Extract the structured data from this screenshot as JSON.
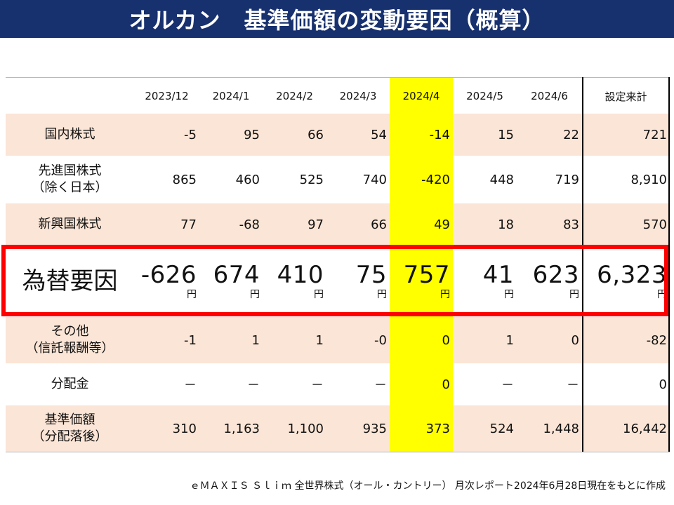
{
  "title": "オルカン　基準価額の変動要因（概算）",
  "table": {
    "header": [
      "",
      "2023/12",
      "2024/1",
      "2024/2",
      "2024/3",
      "2024/4",
      "2024/5",
      "2024/6",
      "設定来計"
    ],
    "highlight_column": "2024/4",
    "rows": [
      {
        "label": "国内株式",
        "values": [
          "-5",
          "95",
          "66",
          "54",
          "-14",
          "15",
          "22",
          "721"
        ]
      },
      {
        "label": "先進国株式\n（除く日本）",
        "values": [
          "865",
          "460",
          "525",
          "740",
          "-420",
          "448",
          "719",
          "8,910"
        ]
      },
      {
        "label": "新興国株式",
        "values": [
          "77",
          "-68",
          "97",
          "66",
          "49",
          "18",
          "83",
          "570"
        ]
      },
      {
        "label": "為替要因",
        "values": [
          "-626",
          "674",
          "410",
          "75",
          "757",
          "41",
          "623",
          "6,323"
        ],
        "unit": "円"
      },
      {
        "label": "その他\n（信託報酬等）",
        "values": [
          "-1",
          "1",
          "1",
          "-0",
          "0",
          "1",
          "0",
          "-82"
        ]
      },
      {
        "label": "分配金",
        "values": [
          "－",
          "－",
          "－",
          "－",
          "0",
          "－",
          "－",
          "0"
        ]
      },
      {
        "label": "基準価額\n（分配落後）",
        "values": [
          "310",
          "1,163",
          "1,100",
          "935",
          "373",
          "524",
          "1,448",
          "16,442"
        ]
      }
    ]
  },
  "colors": {
    "title_bg": "#17306e",
    "row_shade": "#fbe5d6",
    "highlight": "#ffff00",
    "frame": "#ff0000"
  },
  "footer": "ｅＭＡＸＩＳ Ｓｌｉｍ 全世界株式（オール・カントリー） 月次レポート2024年6月28日現在をもとに作成"
}
